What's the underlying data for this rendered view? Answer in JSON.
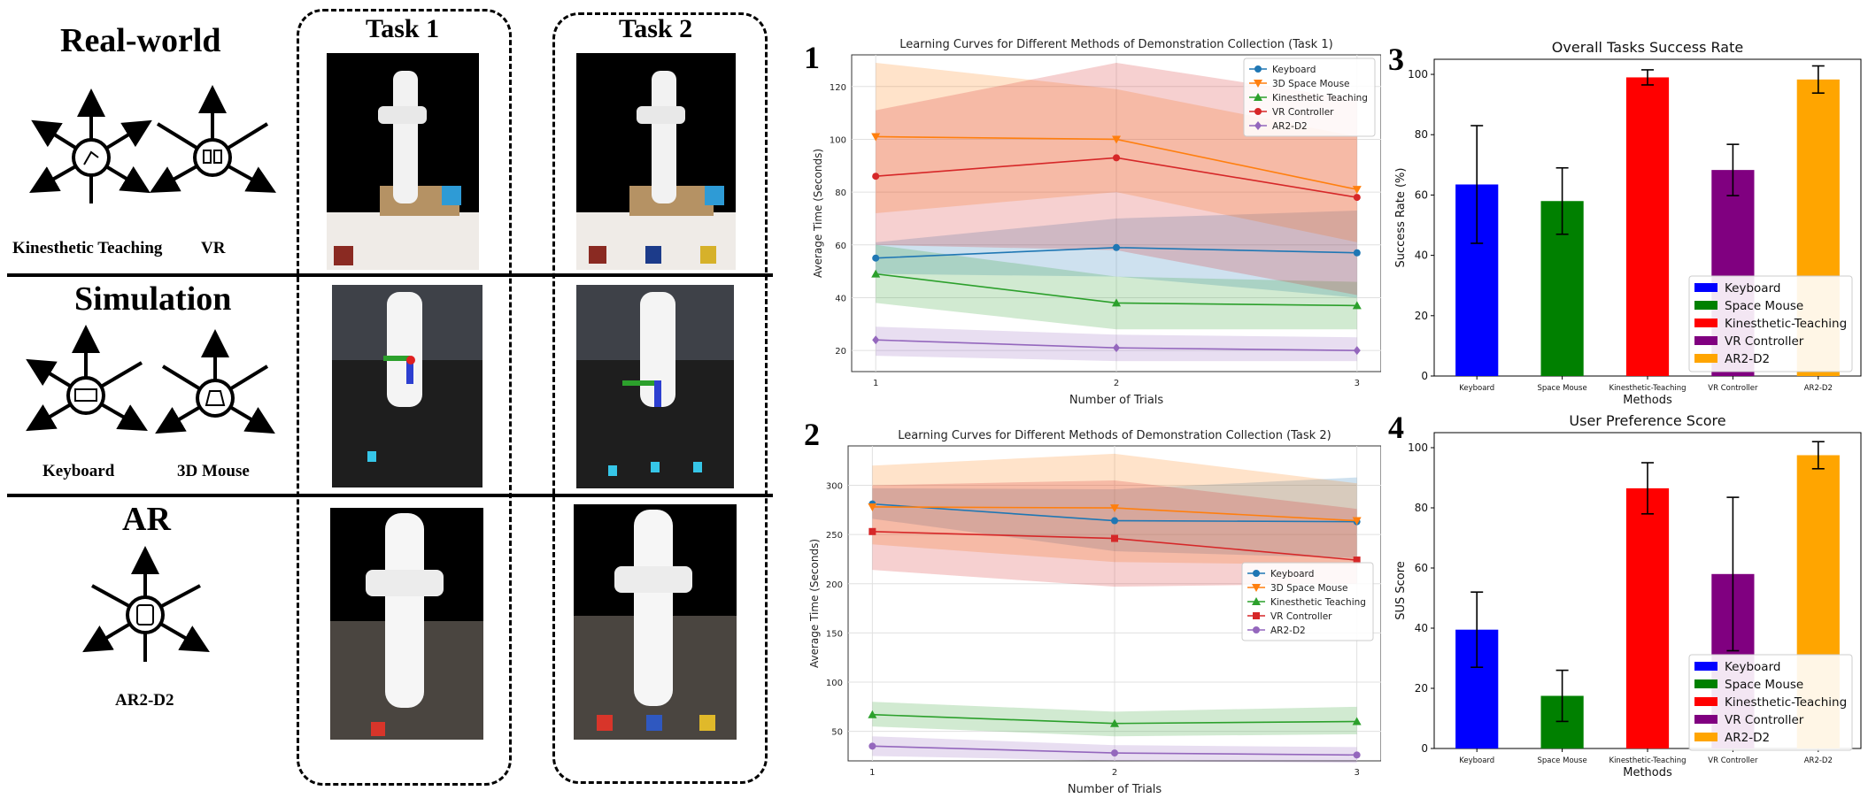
{
  "left": {
    "sections": [
      {
        "title": "Real-world",
        "methods": [
          "Kinesthetic Teaching",
          "VR"
        ]
      },
      {
        "title": "Simulation",
        "methods": [
          "Keyboard",
          "3D Mouse"
        ]
      },
      {
        "title": "AR",
        "methods": [
          "AR2-D2"
        ]
      }
    ],
    "tasks": [
      "Task 1",
      "Task 2"
    ]
  },
  "panels": {
    "p1": "1",
    "p2": "2",
    "p3": "3",
    "p4": "4"
  },
  "colors": {
    "keyboard_line": "#1f77b4",
    "space_mouse_line": "#ff7f0e",
    "kinesthetic_line": "#2ca02c",
    "vr_line": "#d62728",
    "ar2d2_line": "#9467bd",
    "bar_keyboard": "#0000ff",
    "bar_space_mouse": "#008000",
    "bar_kinesthetic": "#ff0000",
    "bar_vr": "#800080",
    "bar_ar2d2": "#ffa500"
  },
  "chart_data": [
    {
      "type": "line",
      "title": "Learning Curves for Different Methods of Demonstration Collection (Task 1)",
      "xlabel": "Number of Trials",
      "ylabel": "Average Time (Seconds)",
      "x": [
        1,
        2,
        3
      ],
      "xticks": [
        "1",
        "2",
        "3"
      ],
      "yticks": [
        "20",
        "40",
        "60",
        "80",
        "100",
        "120"
      ],
      "ylim": [
        12,
        132
      ],
      "grid": true,
      "legend": "top-right",
      "series": [
        {
          "name": "Keyboard",
          "values": [
            55,
            59,
            57
          ],
          "lower": [
            49,
            48,
            40
          ],
          "upper": [
            61,
            70,
            73
          ],
          "marker": "circle"
        },
        {
          "name": "3D Space Mouse",
          "values": [
            101,
            100,
            81
          ],
          "lower": [
            72,
            80,
            61
          ],
          "upper": [
            129,
            119,
            101
          ],
          "marker": "tri-down"
        },
        {
          "name": "Kinesthetic Teaching",
          "values": [
            49,
            38,
            37
          ],
          "lower": [
            38,
            28,
            28
          ],
          "upper": [
            60,
            48,
            46
          ],
          "marker": "tri-up"
        },
        {
          "name": "VR Controller",
          "values": [
            86,
            93,
            78
          ],
          "lower": [
            60,
            58,
            41
          ],
          "upper": [
            111,
            129,
            115
          ],
          "marker": "circle"
        },
        {
          "name": "AR2-D2",
          "values": [
            24,
            21,
            20
          ],
          "lower": [
            18,
            16,
            16
          ],
          "upper": [
            29,
            26,
            25
          ],
          "marker": "diamond"
        }
      ]
    },
    {
      "type": "line",
      "title": "Learning Curves for Different Methods of Demonstration Collection (Task 2)",
      "xlabel": "Number of Trials",
      "ylabel": "Average Time (Seconds)",
      "x": [
        1,
        2,
        3
      ],
      "xticks": [
        "1",
        "2",
        "3"
      ],
      "yticks": [
        "50",
        "100",
        "150",
        "200",
        "250",
        "300"
      ],
      "ylim": [
        20,
        340
      ],
      "grid": true,
      "legend": "center-right",
      "series": [
        {
          "name": "Keyboard",
          "values": [
            281,
            264,
            263
          ],
          "lower": [
            266,
            233,
            226
          ],
          "upper": [
            297,
            296,
            308
          ],
          "marker": "circle"
        },
        {
          "name": "3D Space Mouse",
          "values": [
            278,
            277,
            264
          ],
          "lower": [
            240,
            222,
            219
          ],
          "upper": [
            320,
            332,
            302
          ],
          "marker": "tri-down"
        },
        {
          "name": "Kinesthetic Teaching",
          "values": [
            67,
            58,
            60
          ],
          "lower": [
            55,
            45,
            47
          ],
          "upper": [
            80,
            70,
            75
          ],
          "marker": "tri-up"
        },
        {
          "name": "VR Controller",
          "values": [
            253,
            246,
            224
          ],
          "lower": [
            214,
            197,
            200
          ],
          "upper": [
            300,
            305,
            276
          ],
          "marker": "square"
        },
        {
          "name": "AR2-D2",
          "values": [
            35,
            28,
            26
          ],
          "lower": [
            25,
            20,
            18
          ],
          "upper": [
            45,
            36,
            34
          ],
          "marker": "circle"
        }
      ]
    },
    {
      "type": "bar",
      "title": "Overall Tasks Success Rate",
      "xlabel": "Methods",
      "ylabel": "Success Rate (%)",
      "categories": [
        "Keyboard",
        "Space Mouse",
        "Kinesthetic-Teaching",
        "VR Controller",
        "AR2-D2"
      ],
      "values": [
        63.5,
        58,
        99,
        68.3,
        98.3
      ],
      "errors": [
        19.5,
        11,
        2.5,
        8.5,
        4.5
      ],
      "ylim": [
        0,
        105
      ],
      "yticks": [
        "0",
        "20",
        "40",
        "60",
        "80",
        "100"
      ],
      "legend": "lower-right",
      "legend_entries": [
        "Keyboard",
        "Space Mouse",
        "Kinesthetic-Teaching",
        "VR Controller",
        "AR2-D2"
      ]
    },
    {
      "type": "bar",
      "title": "User Preference Score",
      "xlabel": "Methods",
      "ylabel": "SUS Score",
      "categories": [
        "Keyboard",
        "Space Mouse",
        "Kinesthetic-Teaching",
        "VR Controller",
        "AR2-D2"
      ],
      "values": [
        39.5,
        17.5,
        86.5,
        58,
        97.5
      ],
      "errors": [
        12.5,
        8.5,
        8.5,
        25.5,
        4.5
      ],
      "ylim": [
        0,
        105
      ],
      "yticks": [
        "0",
        "20",
        "40",
        "60",
        "80",
        "100"
      ],
      "legend": "lower-right",
      "legend_entries": [
        "Keyboard",
        "Space Mouse",
        "Kinesthetic-Teaching",
        "VR Controller",
        "AR2-D2"
      ]
    }
  ]
}
